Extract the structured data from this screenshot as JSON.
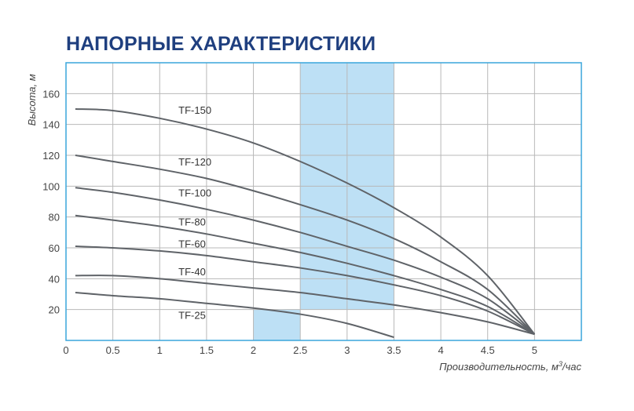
{
  "chart_data": {
    "type": "line",
    "title": "НАПОРНЫЕ ХАРАКТЕРИСТИКИ",
    "ylabel": "Высота, м",
    "xlabel_main": "Производительность, м",
    "xlabel_sup": "3",
    "xlabel_tail": "/час",
    "xlim": [
      0,
      5.5
    ],
    "ylim": [
      0,
      180
    ],
    "x_ticks": [
      "0",
      "0.5",
      "1",
      "1.5",
      "2",
      "2.5",
      "3",
      "3.5",
      "4",
      "4.5",
      "5"
    ],
    "y_ticks": [
      "20",
      "40",
      "60",
      "80",
      "100",
      "120",
      "140",
      "160"
    ],
    "grid": true,
    "border_color": "#3aa6dc",
    "grid_color": "#b8b8b8",
    "curve_color": "#5f6368",
    "band_color": "#bde0f5",
    "highlight_bands": [
      {
        "x": [
          2.5,
          3.5
        ],
        "y": [
          20,
          180
        ]
      },
      {
        "x": [
          2,
          2.5
        ],
        "y": [
          0,
          20
        ]
      }
    ],
    "series": [
      {
        "name": "TF-150",
        "points": [
          [
            0.1,
            150
          ],
          [
            0.5,
            149
          ],
          [
            1,
            144
          ],
          [
            1.5,
            137
          ],
          [
            2,
            128
          ],
          [
            2.5,
            116
          ],
          [
            3,
            102
          ],
          [
            3.5,
            86
          ],
          [
            4,
            67
          ],
          [
            4.5,
            42
          ],
          [
            5,
            4
          ]
        ]
      },
      {
        "name": "TF-120",
        "points": [
          [
            0.1,
            120
          ],
          [
            0.5,
            116
          ],
          [
            1,
            111
          ],
          [
            1.5,
            105
          ],
          [
            2,
            97
          ],
          [
            2.5,
            88
          ],
          [
            3,
            78
          ],
          [
            3.5,
            66
          ],
          [
            4,
            51
          ],
          [
            4.5,
            33
          ],
          [
            5,
            4
          ]
        ]
      },
      {
        "name": "TF-100",
        "points": [
          [
            0.1,
            99
          ],
          [
            0.5,
            96
          ],
          [
            1,
            91
          ],
          [
            1.5,
            85
          ],
          [
            2,
            78
          ],
          [
            2.5,
            70
          ],
          [
            3,
            61
          ],
          [
            3.5,
            52
          ],
          [
            4,
            41
          ],
          [
            4.5,
            27
          ],
          [
            5,
            4
          ]
        ]
      },
      {
        "name": "TF-80",
        "points": [
          [
            0.1,
            81
          ],
          [
            0.5,
            78
          ],
          [
            1,
            74
          ],
          [
            1.5,
            69
          ],
          [
            2,
            63
          ],
          [
            2.5,
            57
          ],
          [
            3,
            50
          ],
          [
            3.5,
            42
          ],
          [
            4,
            33
          ],
          [
            4.5,
            22
          ],
          [
            5,
            4
          ]
        ]
      },
      {
        "name": "TF-60",
        "points": [
          [
            0.1,
            61
          ],
          [
            0.5,
            60
          ],
          [
            1,
            58
          ],
          [
            1.5,
            55
          ],
          [
            2,
            51
          ],
          [
            2.5,
            47
          ],
          [
            3,
            42
          ],
          [
            3.5,
            36
          ],
          [
            4,
            29
          ],
          [
            4.5,
            19
          ],
          [
            5,
            4
          ]
        ]
      },
      {
        "name": "TF-40",
        "points": [
          [
            0.1,
            42
          ],
          [
            0.5,
            42
          ],
          [
            1,
            40
          ],
          [
            1.5,
            37
          ],
          [
            2,
            34
          ],
          [
            2.5,
            31
          ],
          [
            3,
            27
          ],
          [
            3.5,
            23
          ],
          [
            4,
            18
          ],
          [
            4.5,
            12
          ],
          [
            5,
            4
          ]
        ]
      },
      {
        "name": "TF-25",
        "points": [
          [
            0.1,
            31
          ],
          [
            0.5,
            29
          ],
          [
            1,
            27
          ],
          [
            1.5,
            24
          ],
          [
            2,
            21
          ],
          [
            2.5,
            17
          ],
          [
            3,
            11
          ],
          [
            3.5,
            2
          ]
        ]
      }
    ]
  }
}
